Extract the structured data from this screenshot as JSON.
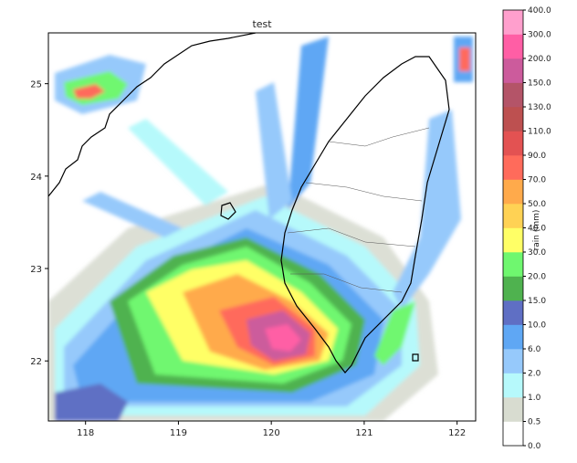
{
  "chart_data": {
    "type": "heatmap",
    "title": "test",
    "xlabel": "",
    "ylabel": "",
    "xlim": [
      117.6,
      122.2
    ],
    "ylim": [
      21.35,
      25.55
    ],
    "x_ticks": [
      "118",
      "119",
      "120",
      "121",
      "122"
    ],
    "x_tick_values": [
      118,
      119,
      120,
      121,
      122
    ],
    "y_ticks": [
      "22",
      "23",
      "24",
      "25"
    ],
    "y_tick_values": [
      22,
      23,
      24,
      25
    ],
    "colorbar": {
      "label": "rain (mm)",
      "levels": [
        "0.0",
        "0.5",
        "1.0",
        "2.0",
        "6.0",
        "10.0",
        "15.0",
        "20.0",
        "30.0",
        "40.0",
        "50.0",
        "70.0",
        "90.0",
        "110.0",
        "130.0",
        "150.0",
        "200.0",
        "300.0",
        "400.0"
      ],
      "colors": [
        "#ffffff",
        "#d8dcd0",
        "#b6f9fb",
        "#96c9fb",
        "#5fa7f4",
        "#5f6fc4",
        "#4fb24f",
        "#6ff76f",
        "#ffff66",
        "#ffd254",
        "#ffaa4b",
        "#ff6b5b",
        "#e35252",
        "#bd5050",
        "#b45468",
        "#cc5b9c",
        "#ff5ea5",
        "#ff9fcd"
      ]
    },
    "basemap": "Taiwan coastline with county boundaries; Fujian coast and Penghu islands to the west",
    "grid": false
  }
}
